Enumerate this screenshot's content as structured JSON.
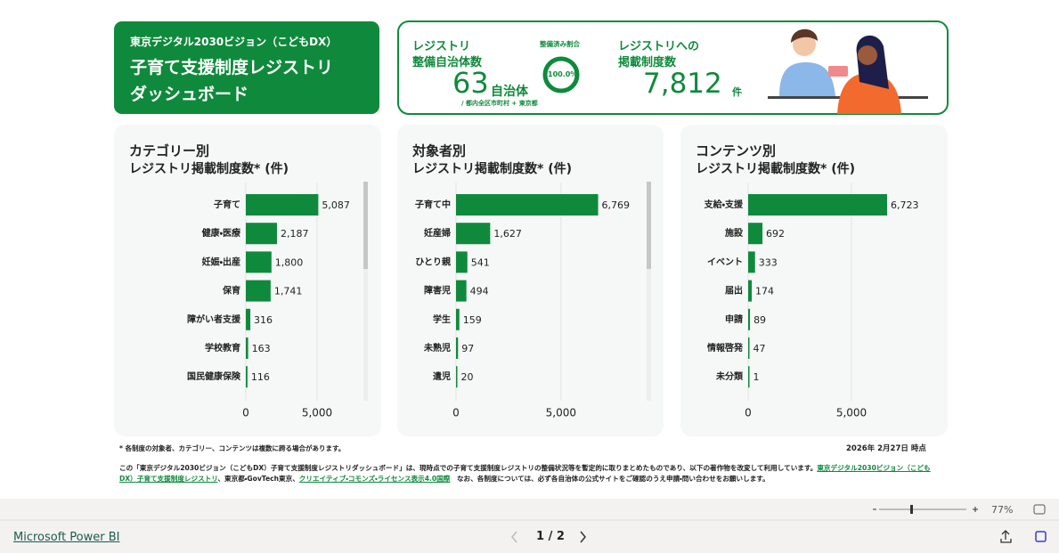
{
  "header": {
    "kicker": "東京デジタル2030ビジョン（こどもDX）",
    "title_lines": [
      "子育て支援制度レジストリ",
      "ダッシュボード"
    ]
  },
  "kpi": {
    "municipalities_label": [
      "レジストリ",
      "整備自治体数"
    ],
    "municipalities_value": "63",
    "municipalities_unit": "自治体",
    "municipalities_note": "/ 都内全区市町村 + 東京都",
    "ratio_label": "整備済み割合",
    "ratio_value": "100.0%",
    "systems_label": [
      "レジストリへの",
      "掲載制度数"
    ],
    "systems_value": "7,812",
    "systems_unit": "件"
  },
  "chart_data": [
    {
      "type": "bar",
      "orientation": "horizontal",
      "title": "カテゴリー別",
      "subtitle": "レジストリ掲載制度数* (件)",
      "color": "#0f8a3c",
      "categories": [
        "子育て",
        "健康・医療",
        "妊娠・出産",
        "保育",
        "障がい者支援",
        "学校教育",
        "国民健康保険"
      ],
      "values": [
        5087,
        2187,
        1800,
        1741,
        316,
        163,
        116
      ],
      "value_labels": [
        "5,087",
        "2,187",
        "1,800",
        "1,741",
        "316",
        "163",
        "116"
      ],
      "xlim": [
        0,
        7500
      ],
      "xticks": [
        0,
        {
          "value": 5000,
          "label": "5,000"
        }
      ],
      "grid": true
    },
    {
      "type": "bar",
      "orientation": "horizontal",
      "title": "対象者別",
      "subtitle": "レジストリ掲載制度数* (件)",
      "color": "#0f8a3c",
      "categories": [
        "子育て中",
        "妊産婦",
        "ひとり親",
        "障害児",
        "学生",
        "未熟児",
        "遺児"
      ],
      "values": [
        6769,
        1627,
        541,
        494,
        159,
        97,
        20
      ],
      "value_labels": [
        "6,769",
        "1,627",
        "541",
        "494",
        "159",
        "97",
        "20"
      ],
      "xlim": [
        0,
        7000
      ],
      "xticks": [
        0,
        {
          "value": 5000,
          "label": "5,000"
        }
      ],
      "grid": true
    },
    {
      "type": "bar",
      "orientation": "horizontal",
      "title": "コンテンツ別",
      "subtitle": "レジストリ掲載制度数* (件)",
      "color": "#0f8a3c",
      "categories": [
        "支給・支援",
        "施設",
        "イベント",
        "届出",
        "申請",
        "情報啓発",
        "未分類"
      ],
      "values": [
        6723,
        692,
        333,
        174,
        89,
        47,
        1
      ],
      "value_labels": [
        "6,723",
        "692",
        "333",
        "174",
        "89",
        "47",
        "1"
      ],
      "xlim": [
        0,
        7500
      ],
      "xticks": [
        0,
        {
          "value": 5000,
          "label": "5,000"
        }
      ],
      "grid": true
    }
  ],
  "footer": {
    "note": "* 各制度の対象者、カテゴリー、コンテンツは複数に跨る場合があります。",
    "as_of": "2026年 2月27日 時点",
    "para_1": "この「東京デジタル2030ビジョン（こどもDX）子育て支援制度レジストリダッシュボード」は、現時点での子育て支援制度レジストリの整備状況等を暫定的に取りまとめたものであり、以下の著作物を改変して利用しています。",
    "link_1": "東京デジタル2030ビジョン（こどもDX）子育て支援制度レジストリ",
    "para_2": "、東京都・GovTech東京、",
    "link_2": "クリエイティブ・コモンズ・ライセンス表示4.0国際",
    "para_3": "　なお、各制度については、必ず各自治体の公式サイトをご確認のうえ申請・問い合わせをお願いします。"
  },
  "toolbar": {
    "zoom": "77%",
    "brand": "Microsoft Power BI",
    "page": "1 / 2"
  }
}
